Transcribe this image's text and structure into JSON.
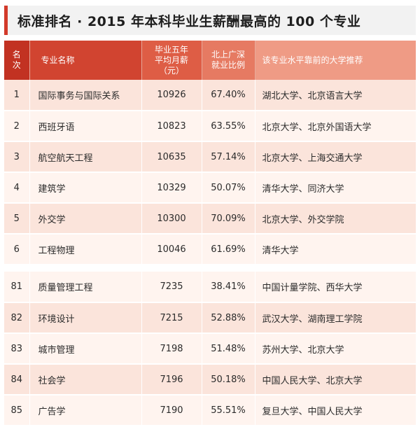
{
  "title": "标准排名 · 2015 年本科毕业生薪酬最高的 100 个专业",
  "header": {
    "rank_line1": "名",
    "rank_line2": "次",
    "major": "专业名称",
    "salary_line1": "毕业五年",
    "salary_line2": "平均月薪",
    "salary_line3": "（元）",
    "ratio_line1": "北上广深",
    "ratio_line2": "就业比例",
    "universities": "该专业水平靠前的大学推荐"
  },
  "rows_top": [
    {
      "rank": "1",
      "major": "国际事务与国际关系",
      "salary": "10926",
      "ratio": "67.40%",
      "universities": "湖北大学、北京语言大学"
    },
    {
      "rank": "2",
      "major": "西班牙语",
      "salary": "10823",
      "ratio": "63.55%",
      "universities": "北京大学、北京外国语大学"
    },
    {
      "rank": "3",
      "major": "航空航天工程",
      "salary": "10635",
      "ratio": "57.14%",
      "universities": "北京大学、上海交通大学"
    },
    {
      "rank": "4",
      "major": "建筑学",
      "salary": "10329",
      "ratio": "50.07%",
      "universities": "清华大学、同济大学"
    },
    {
      "rank": "5",
      "major": "外交学",
      "salary": "10300",
      "ratio": "70.09%",
      "universities": "北京大学、外交学院"
    },
    {
      "rank": "6",
      "major": "工程物理",
      "salary": "10046",
      "ratio": "61.69%",
      "universities": "清华大学"
    }
  ],
  "rows_bottom": [
    {
      "rank": "81",
      "major": "质量管理工程",
      "salary": "7235",
      "ratio": "38.41%",
      "universities": "中国计量学院、西华大学"
    },
    {
      "rank": "82",
      "major": "环境设计",
      "salary": "7215",
      "ratio": "52.88%",
      "universities": "武汉大学、湖南理工学院"
    },
    {
      "rank": "83",
      "major": "城市管理",
      "salary": "7198",
      "ratio": "51.48%",
      "universities": "苏州大学、北京大学"
    },
    {
      "rank": "84",
      "major": "社会学",
      "salary": "7196",
      "ratio": "50.18%",
      "universities": "中国人民大学、北京大学"
    },
    {
      "rank": "85",
      "major": "广告学",
      "salary": "7190",
      "ratio": "55.51%",
      "universities": "复旦大学、中国人民大学"
    }
  ],
  "colors": {
    "accent": "#d23a2a",
    "row_dark": "#fbe4db",
    "row_light": "#fff4ef"
  }
}
